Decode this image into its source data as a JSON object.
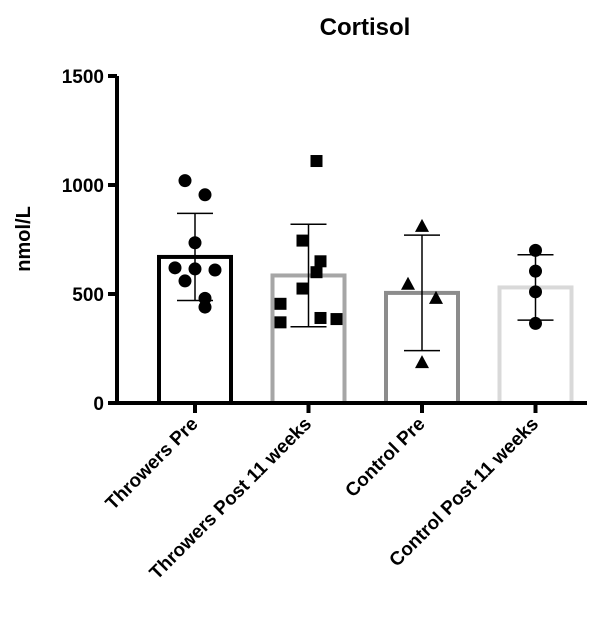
{
  "chart_data": {
    "type": "bar",
    "title": "Cortisol",
    "xlabel": "",
    "ylabel": "nmol/L",
    "ylim": [
      0,
      1500
    ],
    "yticks": [
      0,
      500,
      1000,
      1500
    ],
    "grid": false,
    "categories": [
      "Throwers Pre",
      "Throwers Post 11 weeks",
      "Control Pre",
      "Control Post 11 weeks"
    ],
    "series": [
      {
        "values": [
          670,
          585,
          505,
          530
        ],
        "error": [
          200,
          235,
          265,
          150
        ],
        "colors": [
          "#000000",
          "#a6a6a6",
          "#8c8c8c",
          "#d9d9d9"
        ],
        "marker": [
          "circle",
          "square",
          "triangle",
          "circle"
        ],
        "points": [
          [
            1020,
            955,
            735,
            620,
            615,
            610,
            560,
            480,
            440
          ],
          [
            1110,
            745,
            650,
            600,
            525,
            455,
            390,
            385,
            370
          ],
          [
            810,
            545,
            480,
            185
          ],
          [
            700,
            605,
            510,
            365
          ]
        ]
      }
    ]
  }
}
